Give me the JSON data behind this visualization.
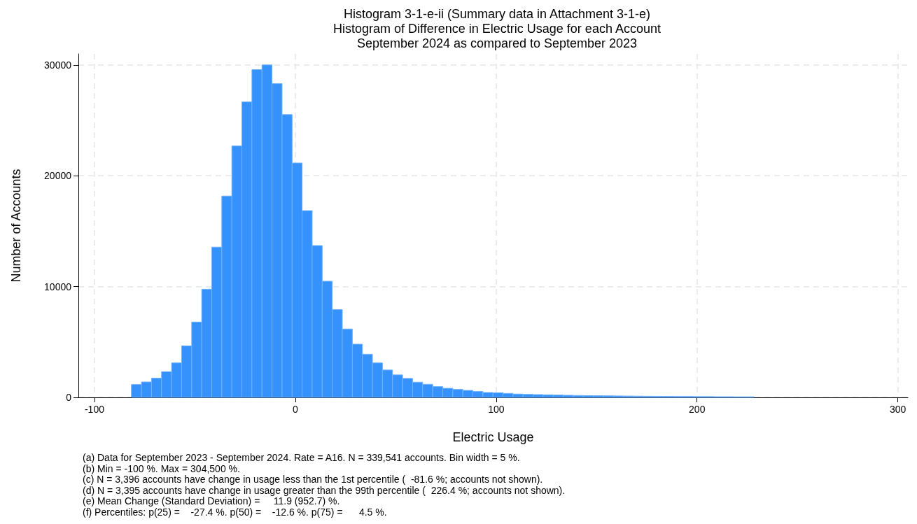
{
  "chart_data": {
    "type": "histogram",
    "title": "Histogram 3-1-e-ii (Summary data in Attachment 3-1-e)\nHistogram of Difference in Electric Usage for each Account\nSeptember 2024 as compared to September 2023",
    "xlabel": "Electric Usage",
    "ylabel": "Number of Accounts",
    "bins": [
      -81.6,
      -76.6,
      -71.6,
      -66.6,
      -61.6,
      -56.6,
      -51.6,
      -46.6,
      -41.6,
      -36.6,
      -31.6,
      -26.6,
      -21.6,
      -16.6,
      -11.6,
      -6.6,
      -1.6,
      3.4,
      8.4,
      13.4,
      18.4,
      23.4,
      28.4,
      33.4,
      38.4,
      43.4,
      48.4,
      53.4,
      58.4,
      63.4,
      68.4,
      73.4,
      78.4,
      83.4,
      88.4,
      93.4,
      98.4,
      103.4,
      108.4,
      113.4,
      118.4,
      123.4,
      128.4,
      133.4,
      138.4,
      143.4,
      148.4,
      153.4,
      158.4,
      163.4,
      168.4,
      173.4,
      178.4,
      183.4,
      188.4,
      193.4,
      198.4,
      203.4,
      208.4,
      213.4,
      218.4,
      223.4,
      228.4
    ],
    "values": [
      1160,
      1390,
      1730,
      2320,
      3110,
      4650,
      6800,
      9760,
      13560,
      18170,
      22690,
      26660,
      29580,
      30000,
      28310,
      25520,
      21150,
      16850,
      13700,
      10480,
      7920,
      6170,
      4800,
      3890,
      3110,
      2470,
      2030,
      1710,
      1370,
      1180,
      970,
      820,
      720,
      630,
      530,
      440,
      420,
      360,
      300,
      270,
      250,
      230,
      210,
      190,
      170,
      160,
      150,
      140,
      130,
      120,
      110,
      100,
      90,
      90,
      80,
      80,
      70,
      70,
      60,
      60,
      50,
      50
    ],
    "color": "#3592fd",
    "xlim": [
      -108,
      305
    ],
    "xticks": [
      -100,
      0,
      100,
      200,
      300
    ],
    "ylim": [
      0,
      31000
    ],
    "yticks": [
      0,
      10000,
      20000,
      30000
    ],
    "grid": true,
    "annotations": [
      "(a) Data for September 2023 - September 2024. Rate = A16. N = 339,541 accounts. Bin width = 5 %.",
      "(b) Min = -100 %. Max = 304,500 %.",
      "(c) N = 3,396 accounts have change in usage less than the 1st percentile (  -81.6 %; accounts not shown).",
      "(d) N = 3,395 accounts have change in usage greater than the 99th percentile (  226.4 %; accounts not shown).",
      "(e) Mean Change (Standard Deviation) =     11.9 (952.7) %.",
      "(f) Percentiles: p(25) =    -27.4 %. p(50) =    -12.6 %. p(75) =      4.5 %."
    ]
  }
}
